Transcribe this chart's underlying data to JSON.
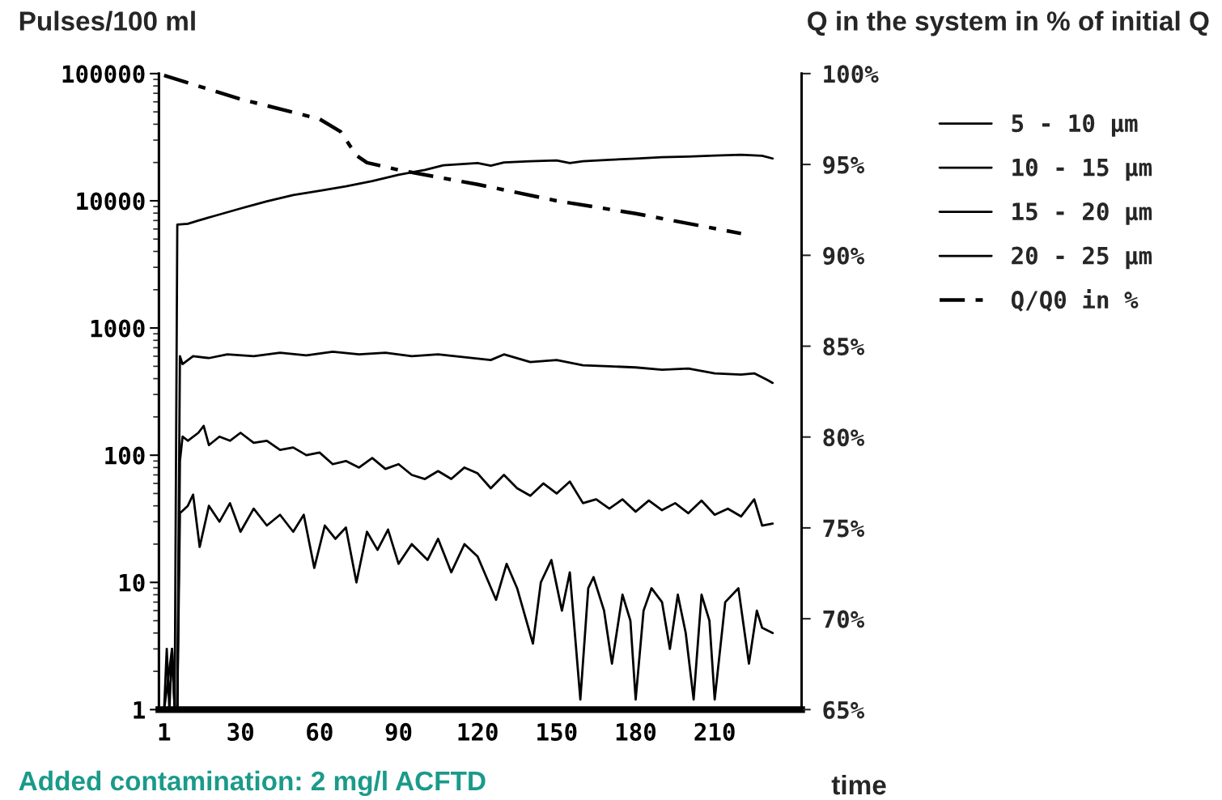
{
  "chart_data": {
    "type": "line",
    "ylabel": "Pulses/100 ml",
    "y2label": "Q in the system in % of initial Q",
    "xlabel": "time",
    "annotations": [
      "Added contamination: 2 mg/l ACFTD"
    ],
    "log": "y",
    "grid": false,
    "legend": "right",
    "marker": "none",
    "xlim": [
      -1,
      243
    ],
    "xticks": [
      1,
      30,
      60,
      90,
      120,
      150,
      180,
      210
    ],
    "ylim": [
      1,
      100000
    ],
    "yticks": [
      1,
      10,
      100,
      1000,
      10000,
      100000
    ],
    "y2lim": [
      65,
      100
    ],
    "y2ticks": [
      {
        "value": 65,
        "label": "65%"
      },
      {
        "value": 70,
        "label": "70%"
      },
      {
        "value": 75,
        "label": "75%"
      },
      {
        "value": 80,
        "label": "80%"
      },
      {
        "value": 85,
        "label": "85%"
      },
      {
        "value": 90,
        "label": "90%"
      },
      {
        "value": 95,
        "label": "95%"
      },
      {
        "value": 100,
        "label": "100%"
      }
    ],
    "series": [
      {
        "name": "5 - 10 µm",
        "color": "#000000",
        "line_style": "solid",
        "x": [
          1,
          4,
          5,
          6,
          10,
          14,
          20,
          30,
          40,
          50,
          60,
          70,
          80,
          90,
          100,
          107,
          120,
          125,
          130,
          140,
          150,
          155,
          160,
          170,
          180,
          190,
          200,
          210,
          220,
          228,
          232
        ],
        "values": [
          1,
          3,
          1,
          6500,
          6600,
          7000,
          7600,
          8700,
          9900,
          11100,
          12000,
          13000,
          14300,
          16000,
          17500,
          19000,
          19800,
          18900,
          20000,
          20500,
          20800,
          19800,
          20500,
          21000,
          21500,
          22000,
          22300,
          22700,
          23000,
          22600,
          21500
        ]
      },
      {
        "name": "10 - 15 µm",
        "color": "#000000",
        "line_style": "solid",
        "x": [
          6,
          7,
          8,
          12,
          18,
          25,
          35,
          45,
          55,
          65,
          75,
          85,
          95,
          105,
          115,
          125,
          130,
          140,
          150,
          160,
          170,
          180,
          190,
          200,
          210,
          220,
          225,
          230,
          232
        ],
        "values": [
          1,
          600,
          520,
          600,
          580,
          620,
          600,
          640,
          610,
          650,
          620,
          640,
          600,
          620,
          590,
          560,
          620,
          540,
          560,
          510,
          500,
          490,
          470,
          480,
          440,
          430,
          440,
          390,
          370
        ]
      },
      {
        "name": "15 - 20 µm",
        "color": "#000000",
        "line_style": "solid",
        "x": [
          6,
          7,
          8,
          10,
          14,
          16,
          18,
          22,
          26,
          30,
          35,
          40,
          45,
          50,
          55,
          60,
          65,
          70,
          75,
          80,
          85,
          90,
          95,
          100,
          105,
          110,
          115,
          120,
          125,
          130,
          135,
          140,
          145,
          150,
          155,
          160,
          165,
          170,
          175,
          180,
          185,
          190,
          195,
          200,
          205,
          210,
          215,
          220,
          225,
          228,
          232
        ],
        "values": [
          1,
          90,
          140,
          130,
          150,
          170,
          120,
          140,
          130,
          150,
          125,
          130,
          110,
          115,
          100,
          105,
          85,
          90,
          80,
          95,
          78,
          85,
          70,
          65,
          75,
          65,
          80,
          72,
          55,
          70,
          55,
          48,
          60,
          50,
          62,
          42,
          45,
          38,
          45,
          36,
          44,
          37,
          42,
          35,
          44,
          34,
          38,
          33,
          45,
          28,
          29
        ]
      },
      {
        "name": "20 - 25 µm",
        "color": "#000000",
        "line_style": "solid",
        "x": [
          1,
          2,
          3,
          4,
          5,
          6,
          7,
          10,
          12,
          14.5,
          18,
          22,
          26,
          30,
          35,
          40,
          45,
          50,
          54,
          58,
          62,
          66,
          70,
          74,
          78,
          82,
          86,
          90,
          95,
          101,
          105,
          110,
          115,
          120,
          127,
          131,
          135,
          141,
          144,
          148,
          152,
          155,
          159,
          162,
          164,
          168,
          171,
          175,
          178,
          180,
          183,
          186,
          190,
          193,
          196,
          199,
          202,
          205,
          208,
          210,
          214,
          219,
          223,
          226,
          228,
          232
        ],
        "values": [
          1,
          3,
          1,
          3,
          1,
          1,
          35,
          40,
          49,
          19,
          40,
          30,
          42,
          25,
          38,
          28,
          34,
          25,
          34,
          13,
          28,
          22,
          27,
          10,
          25,
          18,
          26,
          14,
          20,
          15,
          22,
          12,
          20,
          16,
          7.3,
          14,
          9,
          3.3,
          10,
          15,
          6,
          12,
          1.2,
          9,
          11,
          6,
          2.3,
          8,
          5,
          1.2,
          6,
          9,
          7,
          3,
          8,
          4,
          1.2,
          8,
          5,
          1.2,
          7,
          9,
          2.3,
          6,
          4.4,
          4
        ]
      },
      {
        "name": "Q/Q0 in %",
        "color": "#000000",
        "line_style": "dashdot",
        "axis": "y2",
        "x": [
          1,
          30,
          60,
          68,
          74,
          78,
          90,
          120,
          150,
          180,
          220
        ],
        "values": [
          99.9,
          98.6,
          97.5,
          96.8,
          95.5,
          95.1,
          94.7,
          93.9,
          93.0,
          92.3,
          91.2
        ]
      }
    ]
  }
}
